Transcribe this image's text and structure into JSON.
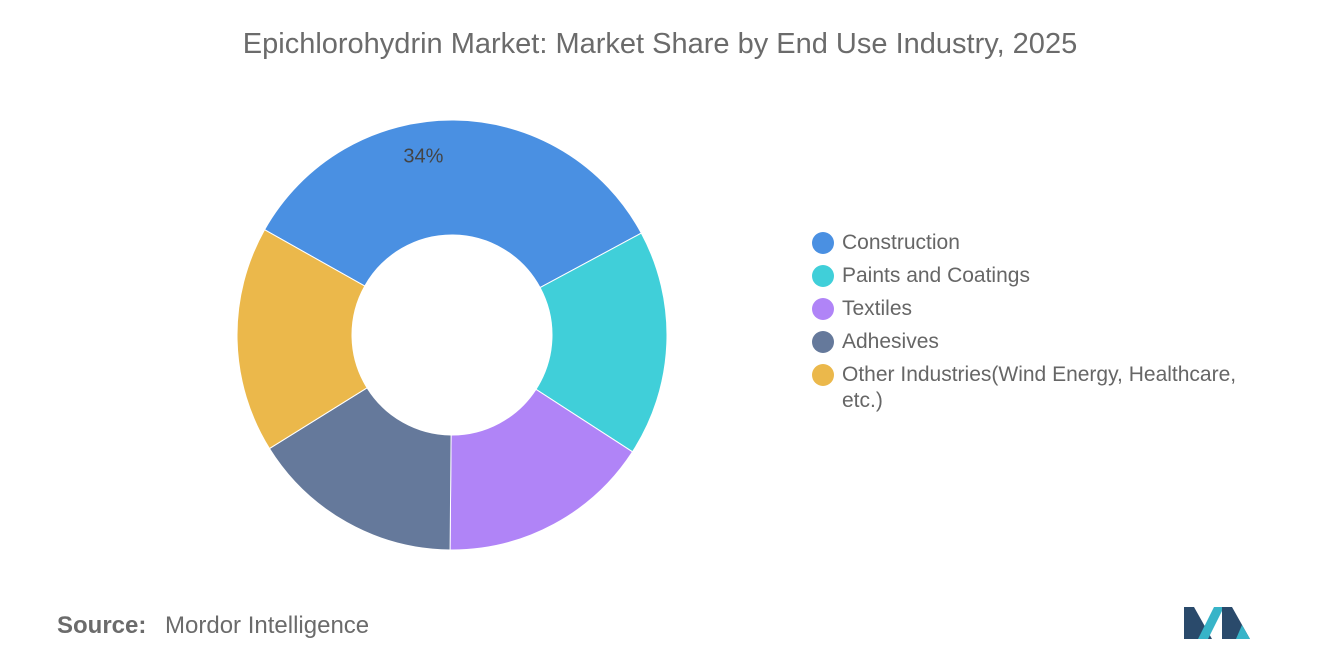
{
  "chart_data": {
    "type": "pie",
    "donut": true,
    "title": "Epichlorohydrin Market: Market Share by End Use Industry, 2025",
    "categories": [
      "Construction",
      "Paints and Coatings",
      "Textiles",
      "Adhesives",
      "Other Industries(Wind Energy, Healthcare, etc.)"
    ],
    "values": [
      34,
      17,
      16,
      16,
      17
    ],
    "colors": [
      "#4a90e2",
      "#40cfd9",
      "#b084f7",
      "#65799b",
      "#ebb84b"
    ],
    "data_labels": [
      "34%",
      "",
      "",
      "",
      ""
    ],
    "legend_position": "right"
  },
  "source": {
    "label": "Source:",
    "value": "Mordor Intelligence"
  },
  "logo": {
    "icon": "mordor-intelligence-logo-icon",
    "colors": [
      "#2a4a6b",
      "#38b4c8"
    ]
  }
}
